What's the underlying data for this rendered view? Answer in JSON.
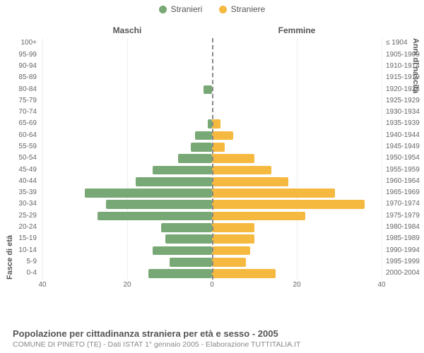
{
  "chart": {
    "type": "population-pyramid",
    "legend": [
      {
        "label": "Stranieri",
        "color": "#78a875"
      },
      {
        "label": "Straniere",
        "color": "#f5b93f"
      }
    ],
    "header_left": "Maschi",
    "header_right": "Femmine",
    "left_axis_title": "Fasce di età",
    "right_axis_title": "Anni di nascita",
    "xlim": 40,
    "xtick_step": 20,
    "xticks_left": [
      40,
      20,
      0
    ],
    "xticks_right": [
      0,
      20,
      40
    ],
    "male_color": "#78a875",
    "female_color": "#f5b93f",
    "background_color": "#ffffff",
    "grid_color": "#eeeeee",
    "divider_color": "#888888",
    "bar_height_ratio": 0.78,
    "label_fontsize": 10,
    "header_fontsize": 12,
    "title_fontsize": 13,
    "rows": [
      {
        "age": "100+",
        "birth": "≤ 1904",
        "m": 0,
        "f": 0
      },
      {
        "age": "95-99",
        "birth": "1905-1909",
        "m": 0,
        "f": 0
      },
      {
        "age": "90-94",
        "birth": "1910-1914",
        "m": 0,
        "f": 0
      },
      {
        "age": "85-89",
        "birth": "1915-1919",
        "m": 0,
        "f": 0
      },
      {
        "age": "80-84",
        "birth": "1920-1924",
        "m": 2,
        "f": 0
      },
      {
        "age": "75-79",
        "birth": "1925-1929",
        "m": 0,
        "f": 0
      },
      {
        "age": "70-74",
        "birth": "1930-1934",
        "m": 0,
        "f": 0
      },
      {
        "age": "65-69",
        "birth": "1935-1939",
        "m": 1,
        "f": 2
      },
      {
        "age": "60-64",
        "birth": "1940-1944",
        "m": 4,
        "f": 5
      },
      {
        "age": "55-59",
        "birth": "1945-1949",
        "m": 5,
        "f": 3
      },
      {
        "age": "50-54",
        "birth": "1950-1954",
        "m": 8,
        "f": 10
      },
      {
        "age": "45-49",
        "birth": "1955-1959",
        "m": 14,
        "f": 14
      },
      {
        "age": "40-44",
        "birth": "1960-1964",
        "m": 18,
        "f": 18
      },
      {
        "age": "35-39",
        "birth": "1965-1969",
        "m": 30,
        "f": 29
      },
      {
        "age": "30-34",
        "birth": "1970-1974",
        "m": 25,
        "f": 36
      },
      {
        "age": "25-29",
        "birth": "1975-1979",
        "m": 27,
        "f": 22
      },
      {
        "age": "20-24",
        "birth": "1980-1984",
        "m": 12,
        "f": 10
      },
      {
        "age": "15-19",
        "birth": "1985-1989",
        "m": 11,
        "f": 10
      },
      {
        "age": "10-14",
        "birth": "1990-1994",
        "m": 14,
        "f": 9
      },
      {
        "age": "5-9",
        "birth": "1995-1999",
        "m": 10,
        "f": 8
      },
      {
        "age": "0-4",
        "birth": "2000-2004",
        "m": 15,
        "f": 15
      }
    ]
  },
  "footer": {
    "title": "Popolazione per cittadinanza straniera per età e sesso - 2005",
    "subtitle": "COMUNE DI PINETO (TE) - Dati ISTAT 1° gennaio 2005 - Elaborazione TUTTITALIA.IT"
  }
}
